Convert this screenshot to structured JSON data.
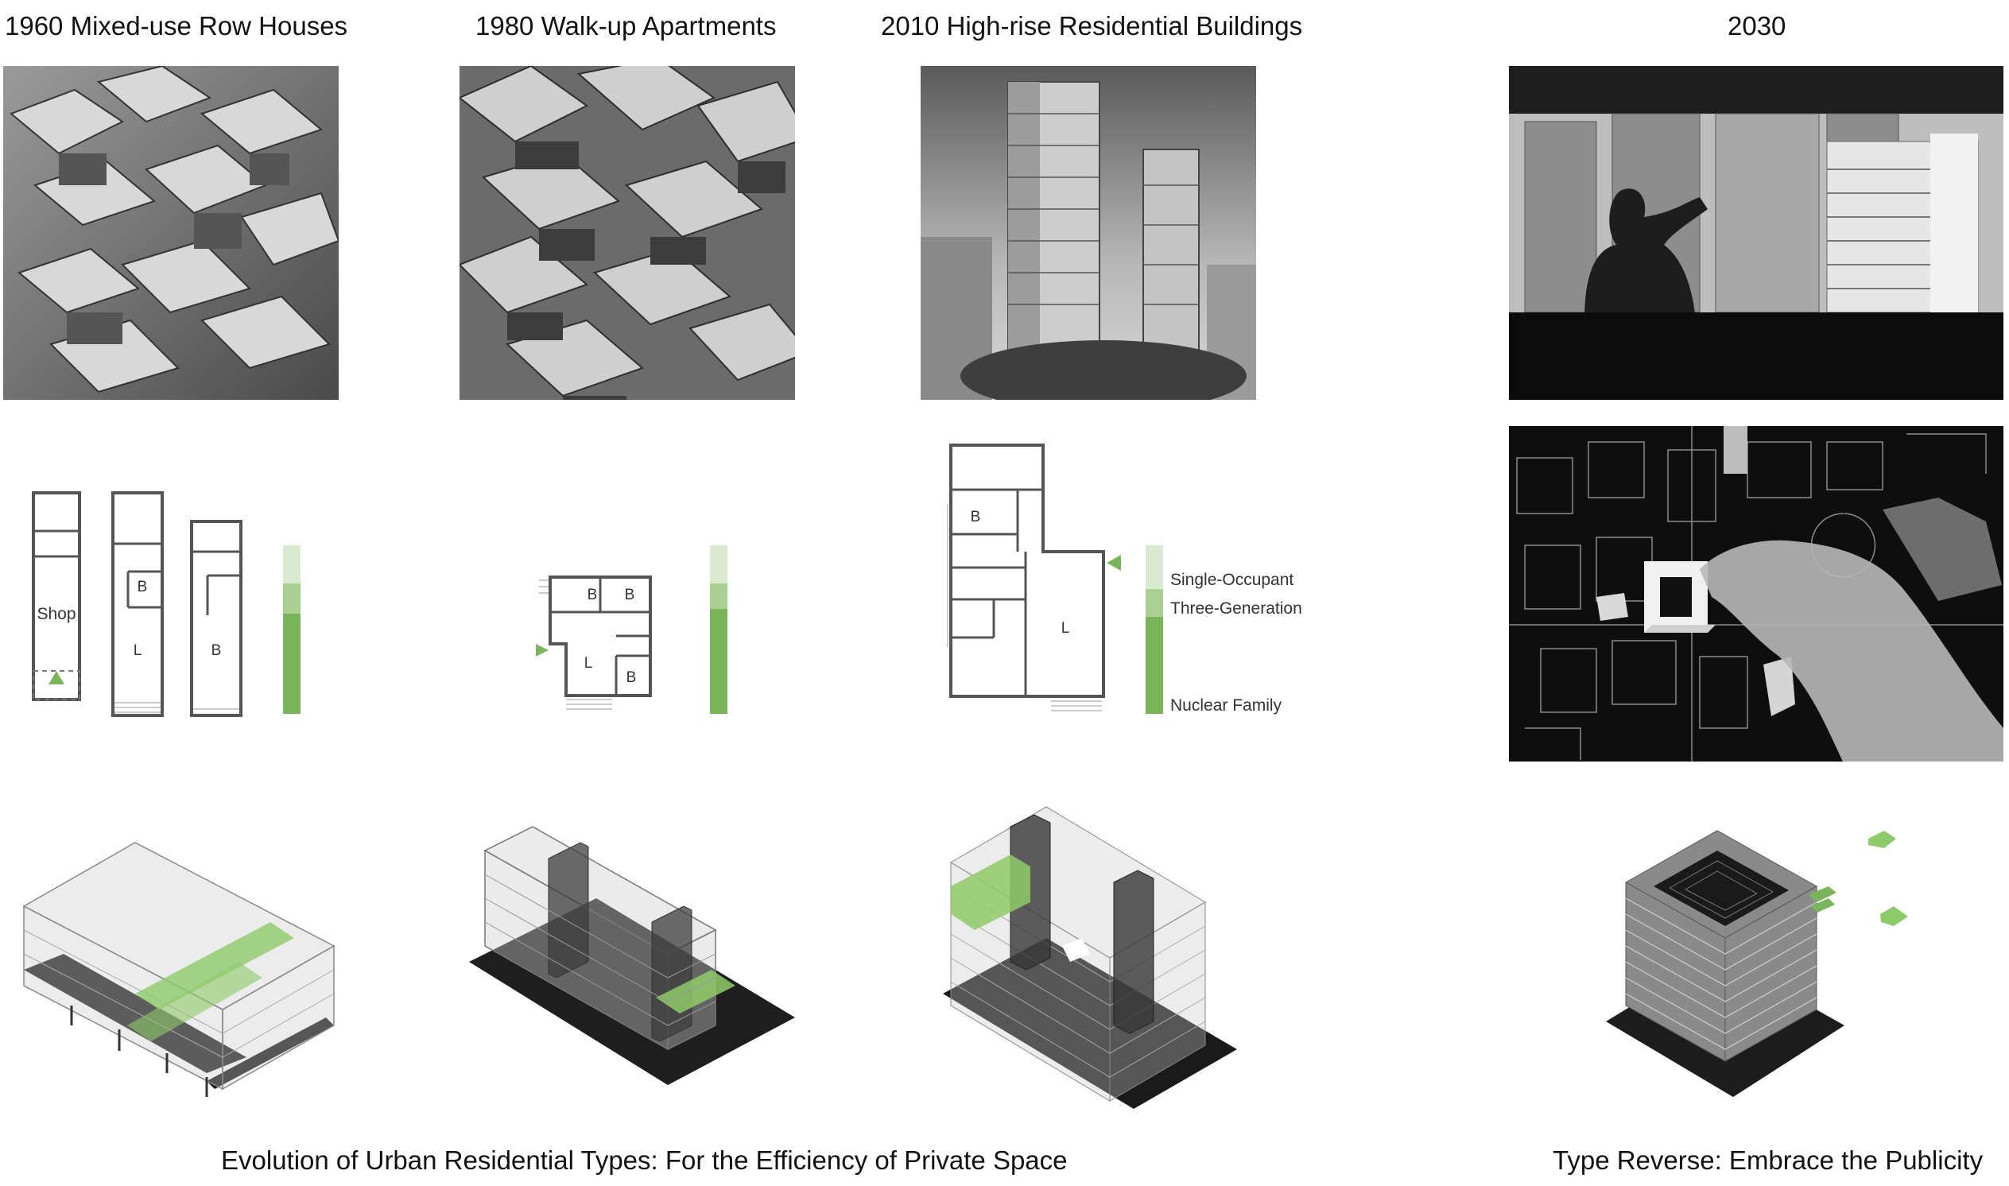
{
  "columns": [
    {
      "title": "1960 Mixed-use Row Houses"
    },
    {
      "title": "1980 Walk-up Apartments"
    },
    {
      "title": "2010 High-rise Residential Buildings"
    },
    {
      "title": "2030"
    }
  ],
  "plans": {
    "c1960": {
      "shop": "Shop",
      "bedroom": "B",
      "living": "L"
    },
    "c1980": {
      "bedroom": "B",
      "living": "L"
    },
    "c2010": {
      "bedroom": "B",
      "living": "L"
    }
  },
  "legend": {
    "single": "Single-Occupant",
    "three": "Three-Generation",
    "nuclear": "Nuclear Family"
  },
  "captions": {
    "left": "Evolution of Urban Residential Types: For the Efficiency of Private Space",
    "right": "Type Reverse: Embrace the Publicity"
  },
  "colors": {
    "green": "#7ab55c",
    "green_mid": "#a9cf92",
    "green_light": "#d9ead0",
    "dark": "#2a2a2a"
  },
  "images": [
    "aerial-row-houses-photo",
    "aerial-walkup-apartments-photo",
    "highrise-towers-photo",
    "city-view-silhouette-photo",
    "hand-placing-block-on-map-photo"
  ]
}
